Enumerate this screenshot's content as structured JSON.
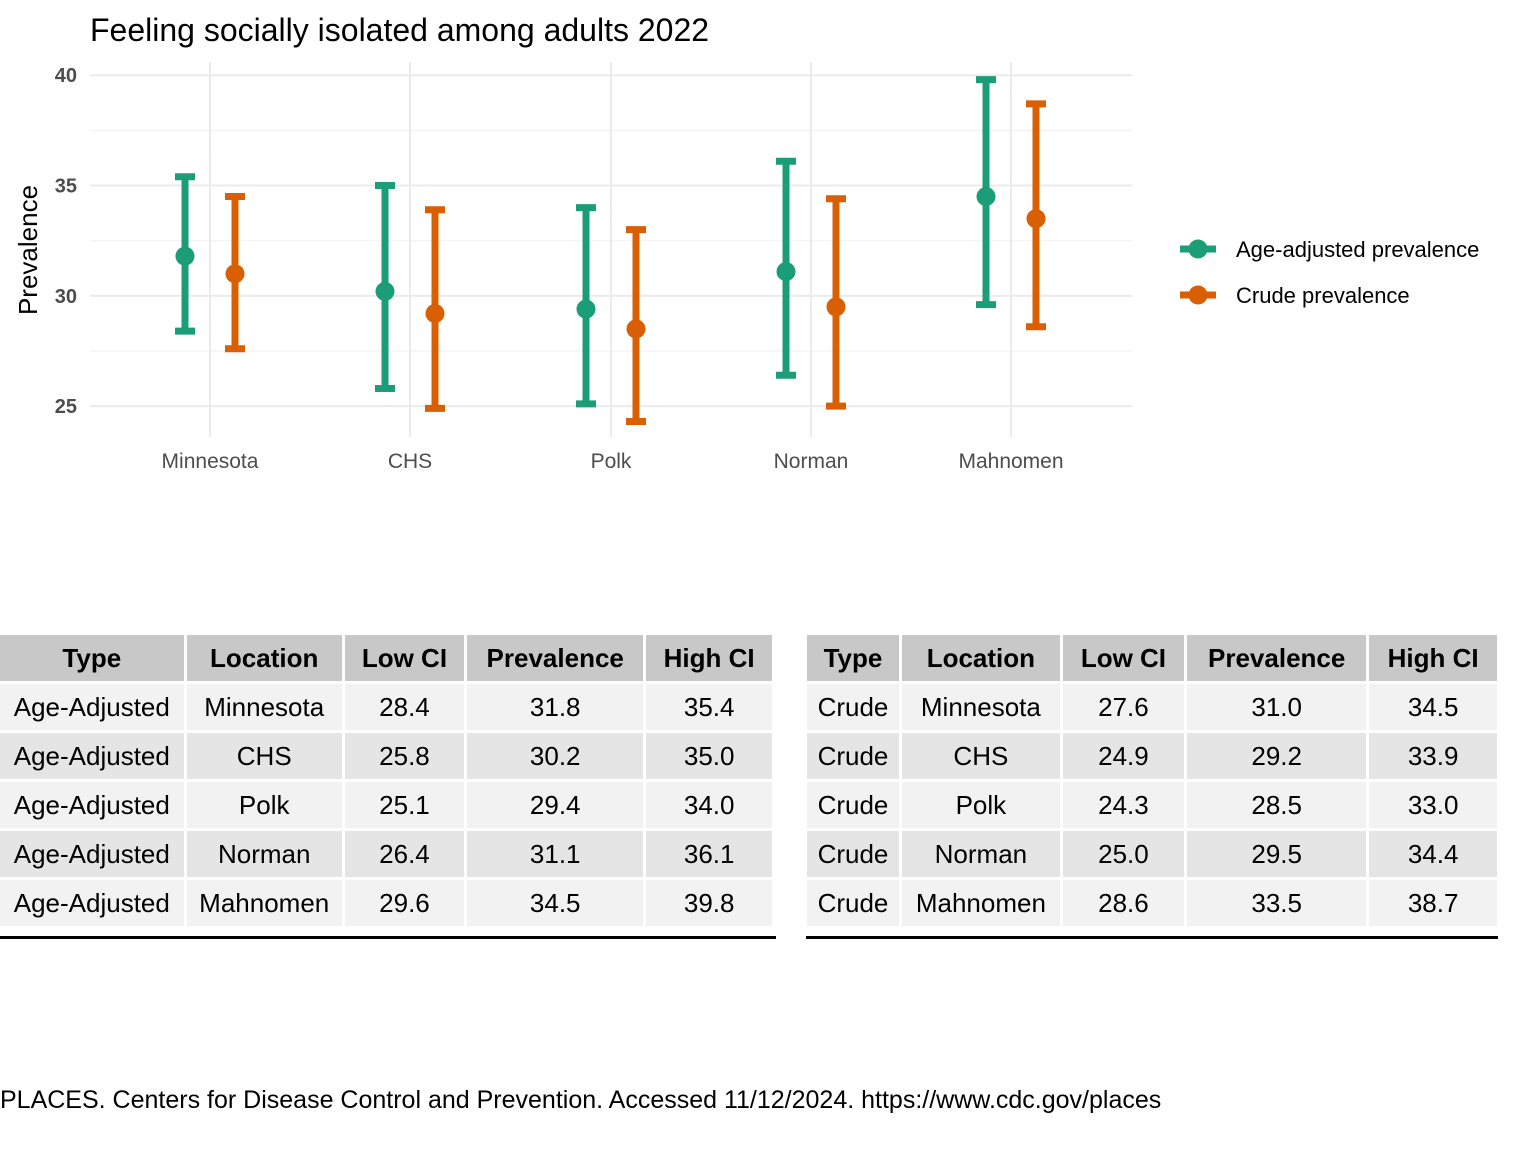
{
  "chart_data": {
    "type": "errorbar",
    "title": "Feeling socially isolated among adults 2022",
    "xlabel": "",
    "ylabel": "Prevalence",
    "ylim": [
      23.6,
      40.6
    ],
    "yticks": [
      25,
      30,
      35,
      40
    ],
    "grid": true,
    "legend_position": "right",
    "categories": [
      "Minnesota",
      "CHS",
      "Polk",
      "Norman",
      "Mahnomen"
    ],
    "series": [
      {
        "name": "Age-adjusted prevalence",
        "color": "#1b9e77",
        "values": [
          31.8,
          30.2,
          29.4,
          31.1,
          34.5
        ],
        "low": [
          28.4,
          25.8,
          25.1,
          26.4,
          29.6
        ],
        "high": [
          35.4,
          35.0,
          34.0,
          36.1,
          39.8
        ]
      },
      {
        "name": "Crude prevalence",
        "color": "#d95f02",
        "values": [
          31.0,
          29.2,
          28.5,
          29.5,
          33.5
        ],
        "low": [
          27.6,
          24.9,
          24.3,
          25.0,
          28.6
        ],
        "high": [
          34.5,
          33.9,
          33.0,
          34.4,
          38.7
        ]
      }
    ]
  },
  "tables": {
    "headers": [
      "Type",
      "Location",
      "Low CI",
      "Prevalence",
      "High CI"
    ],
    "left": {
      "rows": [
        [
          "Age-Adjusted",
          "Minnesota",
          "28.4",
          "31.8",
          "35.4"
        ],
        [
          "Age-Adjusted",
          "CHS",
          "25.8",
          "30.2",
          "35.0"
        ],
        [
          "Age-Adjusted",
          "Polk",
          "25.1",
          "29.4",
          "34.0"
        ],
        [
          "Age-Adjusted",
          "Norman",
          "26.4",
          "31.1",
          "36.1"
        ],
        [
          "Age-Adjusted",
          "Mahnomen",
          "29.6",
          "34.5",
          "39.8"
        ]
      ]
    },
    "right": {
      "rows": [
        [
          "Crude",
          "Minnesota",
          "27.6",
          "31.0",
          "34.5"
        ],
        [
          "Crude",
          "CHS",
          "24.9",
          "29.2",
          "33.9"
        ],
        [
          "Crude",
          "Polk",
          "24.3",
          "28.5",
          "33.0"
        ],
        [
          "Crude",
          "Norman",
          "25.0",
          "29.5",
          "34.4"
        ],
        [
          "Crude",
          "Mahnomen",
          "28.6",
          "33.5",
          "38.7"
        ]
      ]
    }
  },
  "source": "PLACES. Centers for Disease Control and Prevention. Accessed 11/12/2024. https://www.cdc.gov/places"
}
